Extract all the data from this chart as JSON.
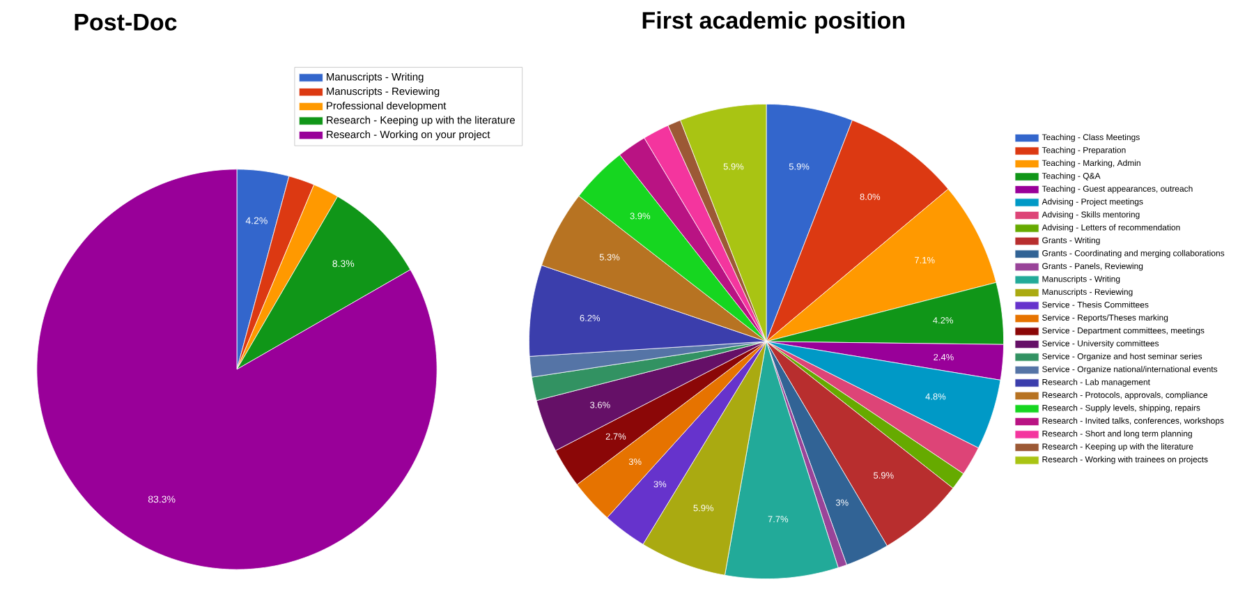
{
  "chart_data": [
    {
      "type": "pie",
      "title": "Post-Doc",
      "legend": "top right",
      "categories": [
        "Manuscripts - Writing",
        "Manuscripts - Reviewing",
        "Professional development",
        "Research - Keeping up with the literature",
        "Research - Working on your project"
      ],
      "values": [
        4.2,
        2.1,
        2.1,
        8.3,
        83.3
      ],
      "value_labels": [
        "4.2%",
        null,
        null,
        "8.3%",
        "83.3%"
      ],
      "colors": [
        "#3366cc",
        "#dc3912",
        "#ff9900",
        "#109618",
        "#990099"
      ]
    },
    {
      "type": "pie",
      "title": "First academic position",
      "legend": "right",
      "categories": [
        "Teaching - Class Meetings",
        "Teaching - Preparation",
        "Teaching - Marking, Admin",
        "Teaching - Q&A",
        "Teaching - Guest appearances, outreach",
        "Advising - Project meetings",
        "Advising - Skills mentoring",
        "Advising - Letters of recommendation",
        "Grants - Writing",
        "Grants - Coordinating and merging collaborations",
        "Grants - Panels, Reviewing",
        "Manuscripts - Writing",
        "Manuscripts - Reviewing",
        "Service - Thesis Committees",
        "Service - Reports/Theses marking",
        "Service - Department committees, meetings",
        "Service - University committees",
        "Service - Organize and host seminar series",
        "Service - Organize national/international events",
        "Research - Lab management",
        "Research - Protocols, approvals, compliance",
        "Research - Supply levels, shipping, repairs",
        "Research - Invited talks, conferences, workshops",
        "Research - Short and long term planning",
        "Research - Keeping up with the literature",
        "Research - Working with trainees on projects"
      ],
      "values": [
        5.9,
        8.0,
        7.1,
        4.2,
        2.4,
        4.8,
        2.0,
        1.2,
        5.9,
        3,
        0.6,
        7.7,
        5.9,
        3,
        3,
        2.7,
        3.6,
        1.6,
        1.4,
        6.2,
        5.3,
        3.9,
        2.0,
        1.8,
        0.9,
        5.9
      ],
      "value_labels": [
        "5.9%",
        "8.0%",
        "7.1%",
        "4.2%",
        "2.4%",
        "4.8%",
        null,
        null,
        "5.9%",
        "3%",
        null,
        "7.7%",
        "5.9%",
        "3%",
        "3%",
        "2.7%",
        "3.6%",
        null,
        null,
        "6.2%",
        "5.3%",
        "3.9%",
        null,
        null,
        null,
        "5.9%"
      ],
      "colors": [
        "#3366cc",
        "#dc3912",
        "#ff9900",
        "#109618",
        "#990099",
        "#0099c6",
        "#dd4477",
        "#66aa00",
        "#b82e2e",
        "#316395",
        "#994499",
        "#22aa99",
        "#aaaa11",
        "#6633cc",
        "#e67300",
        "#8b0707",
        "#651067",
        "#329262",
        "#5574a6",
        "#3b3eac",
        "#b77322",
        "#16d620",
        "#b91383",
        "#f4359e",
        "#9c5935",
        "#a9c413"
      ]
    }
  ]
}
